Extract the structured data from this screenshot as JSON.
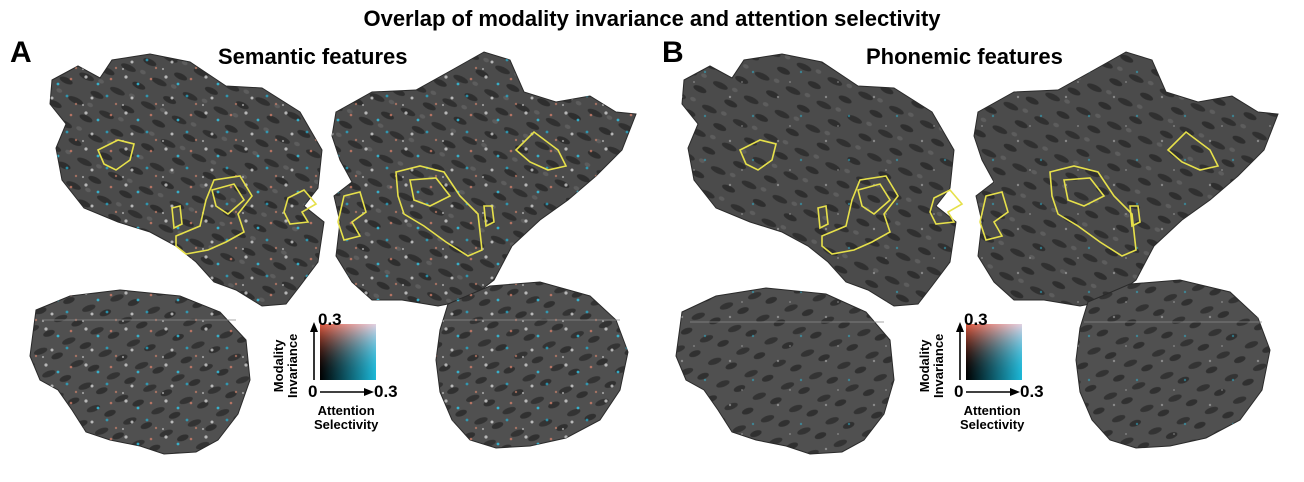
{
  "figure": {
    "title": "Overlap of modality invariance and attention selectivity"
  },
  "panels": [
    {
      "letter": "A",
      "title": "Semantic features",
      "legend": {
        "y_label_line1": "Modality",
        "y_label_line2": "Invariance",
        "x_label_line1": "Attention",
        "x_label_line2": "Selectivity",
        "y_max": "0.3",
        "x_max": "0.3",
        "origin": "0"
      }
    },
    {
      "letter": "B",
      "title": "Phonemic features",
      "legend": {
        "y_label_line1": "Modality",
        "y_label_line2": "Invariance",
        "x_label_line1": "Attention",
        "x_label_line2": "Selectivity",
        "y_max": "0.3",
        "x_max": "0.3",
        "origin": "0"
      }
    }
  ],
  "colors": {
    "cortex_dark": "#3a3a3a",
    "cortex_light": "#5a5a5a",
    "roi_outline": "#e6e04a",
    "invariance": "#e05a40",
    "selectivity": "#1bb8d8"
  }
}
